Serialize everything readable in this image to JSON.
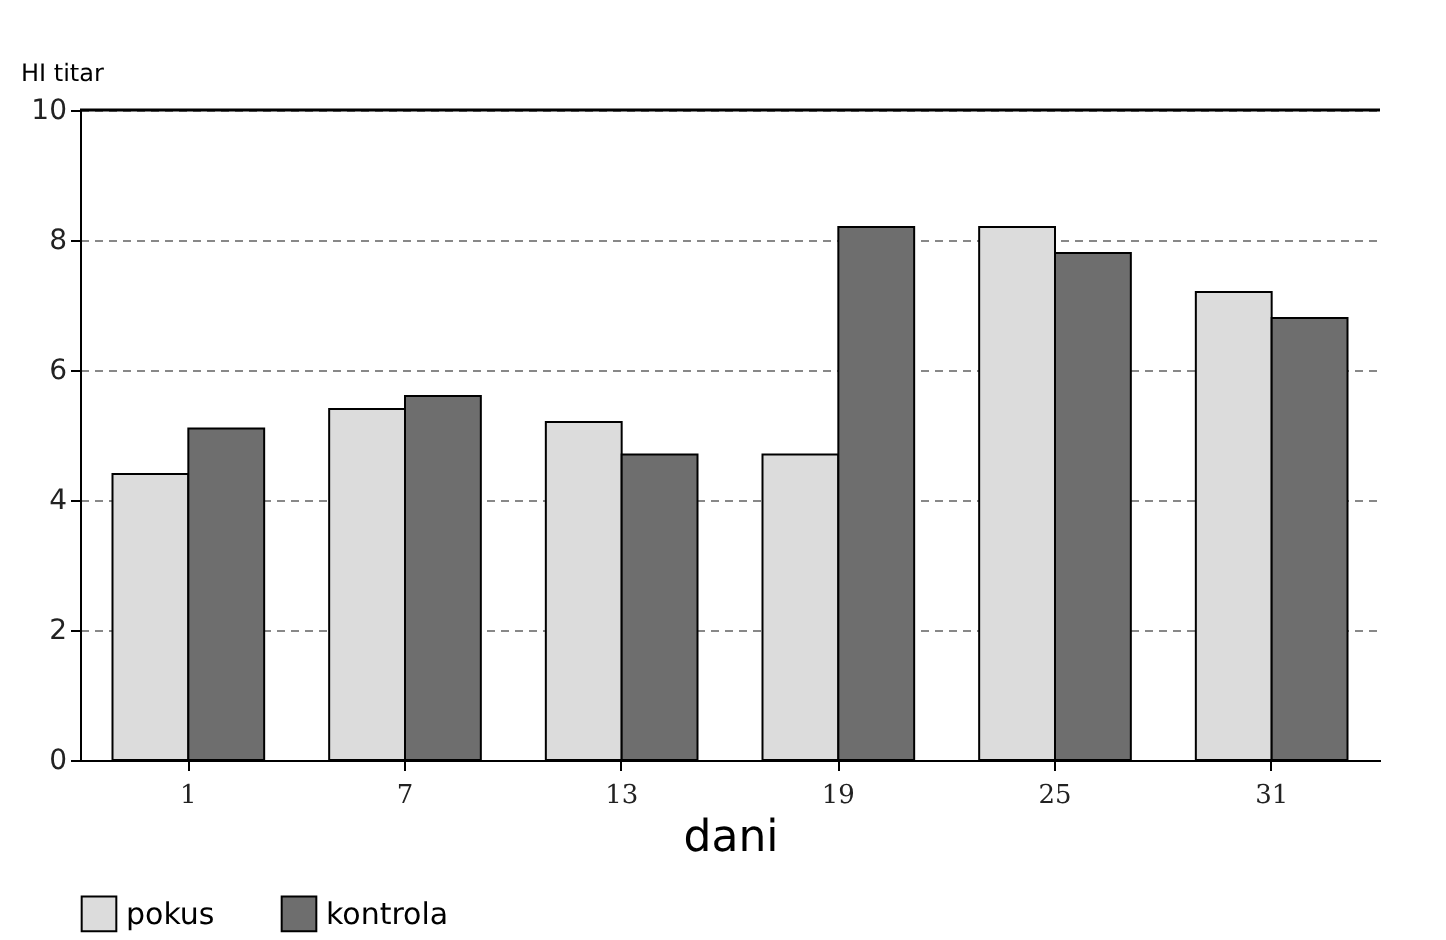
{
  "chart_data": {
    "type": "bar",
    "ylabel": "HI titar",
    "xlabel": "dani",
    "categories": [
      "1",
      "7",
      "13",
      "19",
      "25",
      "31"
    ],
    "series": [
      {
        "name": "pokus",
        "color": "#dcdcdc",
        "values": [
          4.4,
          5.4,
          5.2,
          4.7,
          8.2,
          7.2
        ]
      },
      {
        "name": "kontrola",
        "color": "#6e6e6e",
        "values": [
          5.1,
          5.6,
          4.7,
          8.2,
          7.8,
          6.8
        ]
      }
    ],
    "ylim": [
      0,
      10
    ],
    "yticks": [
      0,
      2,
      4,
      6,
      8,
      10
    ],
    "grid": "y",
    "legend": "bottom"
  }
}
